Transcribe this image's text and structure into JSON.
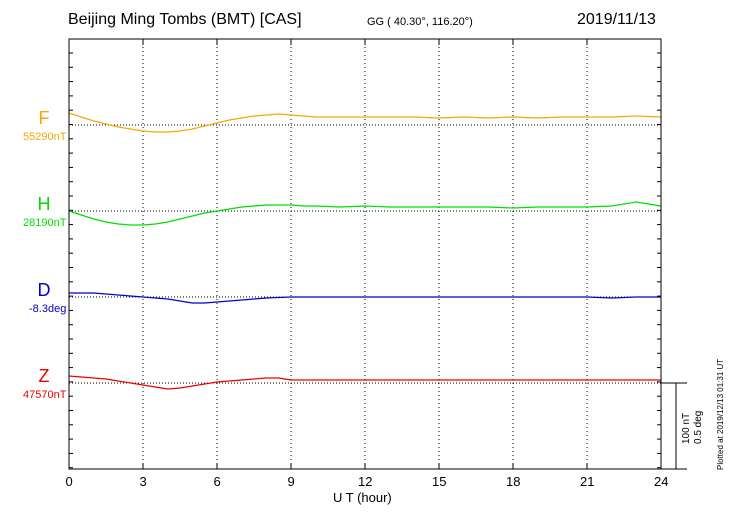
{
  "header": {
    "station": "Beijing Ming Tombs (BMT)  [CAS]",
    "coordinates": "GG ( 40.30°, 116.20°)",
    "date": "2019/11/13"
  },
  "footer": {
    "plotted": "Plotted at 2019/12/13 01:31  UT"
  },
  "chart_data": {
    "type": "line",
    "xlabel": "U T (hour)",
    "xlim": [
      0,
      24
    ],
    "xticks": [
      0,
      3,
      6,
      9,
      12,
      15,
      18,
      21,
      24
    ],
    "grid": true,
    "scale_bar": {
      "label_top": "100 nT",
      "label_bottom": "0.5 deg"
    },
    "series": [
      {
        "name": "F",
        "baseline_label": "55290nT",
        "color": "#f5a800",
        "x": [
          0,
          0.5,
          1,
          1.5,
          2,
          2.5,
          3,
          3.5,
          4,
          4.5,
          5,
          5.5,
          6,
          6.5,
          7,
          7.5,
          8,
          8.5,
          9,
          9.5,
          10,
          11,
          12,
          13,
          14,
          15,
          16,
          17,
          18,
          19,
          20,
          21,
          22,
          23,
          24
        ],
        "y": [
          12,
          8,
          4,
          1,
          -2,
          -4,
          -6,
          -7,
          -7,
          -6,
          -4,
          -1,
          2,
          5,
          7,
          9,
          10,
          11,
          10,
          9,
          8,
          8,
          8,
          8,
          8,
          7,
          8,
          7,
          8,
          7,
          8,
          8,
          8,
          9,
          8
        ]
      },
      {
        "name": "H",
        "baseline_label": "28190nT",
        "color": "#00dd00",
        "x": [
          0,
          0.5,
          1,
          1.5,
          2,
          2.5,
          3,
          3.5,
          4,
          4.5,
          5,
          5.5,
          6,
          6.5,
          7,
          7.5,
          8,
          8.5,
          9,
          9.5,
          10,
          11,
          12,
          13,
          14,
          15,
          16,
          17,
          18,
          19,
          20,
          21,
          22,
          23,
          24
        ],
        "y": [
          0,
          -4,
          -8,
          -11,
          -13,
          -14,
          -14,
          -13,
          -11,
          -8,
          -5,
          -2,
          0,
          2,
          4,
          5,
          6,
          6,
          6,
          5,
          5,
          4,
          5,
          4,
          4,
          4,
          4,
          4,
          3,
          4,
          4,
          4,
          5,
          9,
          5
        ]
      },
      {
        "name": "D",
        "baseline_label": "-8.3deg",
        "color": "#0000cc",
        "x": [
          0,
          0.5,
          1,
          1.5,
          2,
          2.5,
          3,
          3.5,
          4,
          4.5,
          5,
          5.5,
          6,
          6.5,
          7,
          7.5,
          8,
          9,
          10,
          11,
          12,
          13,
          14,
          15,
          16,
          17,
          18,
          19,
          20,
          21,
          22,
          23,
          24
        ],
        "y": [
          4,
          4,
          4,
          3,
          2,
          1,
          0,
          -1,
          -2,
          -4,
          -6,
          -6,
          -5,
          -4,
          -3,
          -2,
          -1,
          0,
          0,
          0,
          0,
          0,
          0,
          0,
          0,
          0,
          0,
          0,
          0,
          0,
          -1,
          0,
          0
        ]
      },
      {
        "name": "Z",
        "baseline_label": "47570nT",
        "color": "#ee0000",
        "x": [
          0,
          0.5,
          1,
          1.5,
          2,
          2.5,
          3,
          3.5,
          4,
          4.5,
          5,
          5.5,
          6,
          6.5,
          7,
          7.5,
          8,
          8.5,
          9,
          10,
          11,
          12,
          13,
          14,
          15,
          16,
          17,
          18,
          19,
          20,
          21,
          22,
          23,
          24
        ],
        "y": [
          7,
          6,
          5,
          4,
          2,
          0,
          -2,
          -4,
          -6,
          -5,
          -3,
          -1,
          1,
          2,
          3,
          4,
          5,
          5,
          3,
          3,
          3,
          3,
          3,
          3,
          3,
          3,
          3,
          3,
          3,
          3,
          3,
          3,
          3,
          3
        ]
      }
    ]
  }
}
